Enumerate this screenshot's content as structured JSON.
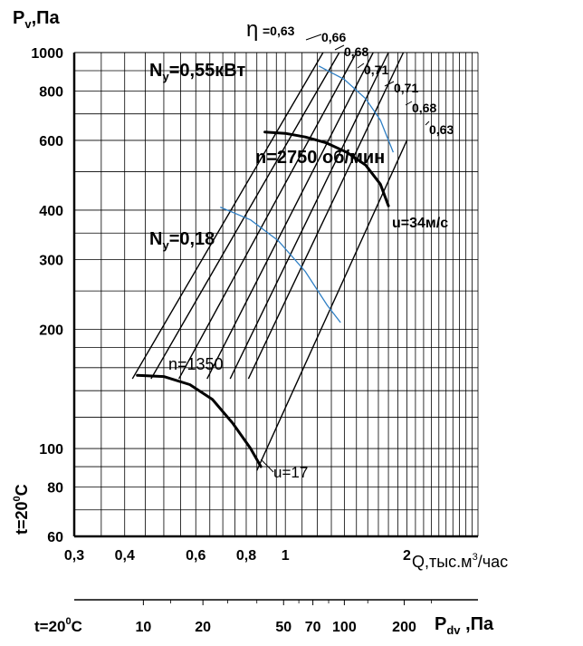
{
  "chart_data": {
    "type": "line",
    "xscale": "log",
    "yscale": "log",
    "xlim": [
      0.3,
      3.0
    ],
    "ylim": [
      60,
      1000
    ],
    "grid": true,
    "y_title_main": "P",
    "y_title_sub": "v",
    "y_title_unit": ",Па",
    "x_title_main": "Q,тыс.м",
    "x_title_sup": "3",
    "x_title_unit": "/час",
    "x_ticks": [
      {
        "v": 0.3,
        "label": "0,3"
      },
      {
        "v": 0.4,
        "label": "0,4"
      },
      {
        "v": 0.6,
        "label": "0,6"
      },
      {
        "v": 0.8,
        "label": "0,8"
      },
      {
        "v": 1.0,
        "label": "1"
      },
      {
        "v": 2.0,
        "label": "2"
      }
    ],
    "y_ticks": [
      {
        "v": 60,
        "label": "60"
      },
      {
        "v": 80,
        "label": "80"
      },
      {
        "v": 100,
        "label": "100"
      },
      {
        "v": 200,
        "label": "200"
      },
      {
        "v": 300,
        "label": "300"
      },
      {
        "v": 400,
        "label": "400"
      },
      {
        "v": 600,
        "label": "600"
      },
      {
        "v": 800,
        "label": "800"
      },
      {
        "v": 1000,
        "label": "1000"
      }
    ],
    "temperature_label": "t=20",
    "temperature_sup": "0",
    "temperature_unit": "С",
    "dyn_axis": {
      "prefix": "t=20",
      "prefix_sup": "0",
      "prefix_unit": "С",
      "ticks": [
        {
          "label": "10",
          "at_q": 0.445
        },
        {
          "label": "20",
          "at_q": 0.625
        },
        {
          "label": "50",
          "at_q": 0.99
        },
        {
          "label": "70",
          "at_q": 1.17
        },
        {
          "label": "100",
          "at_q": 1.4
        },
        {
          "label": "200",
          "at_q": 1.97
        }
      ],
      "title_main": "P",
      "title_sub": "dv",
      "title_unit": " ,Па"
    },
    "efficiency": {
      "symbol": "η",
      "labels": [
        "=0,63",
        "0,66",
        "0,68",
        "0,71",
        "0,71",
        "0,68",
        "0,63"
      ],
      "lines": [
        {
          "q1": 0.418,
          "p1": 150,
          "q2": 1.24,
          "p2": 1000
        },
        {
          "q1": 0.465,
          "p1": 150,
          "q2": 1.36,
          "p2": 1000
        },
        {
          "q1": 0.545,
          "p1": 150,
          "q2": 1.5,
          "p2": 1000
        },
        {
          "q1": 0.64,
          "p1": 150,
          "q2": 1.65,
          "p2": 1000
        },
        {
          "q1": 0.73,
          "p1": 150,
          "q2": 1.8,
          "p2": 1000
        },
        {
          "q1": 0.81,
          "p1": 150,
          "q2": 1.96,
          "p2": 1000
        },
        {
          "q1": 0.85,
          "p1": 88,
          "q2": 2.0,
          "p2": 600
        }
      ]
    },
    "speed_curves": [
      {
        "label": "n=1350",
        "points": [
          [
            0.43,
            153
          ],
          [
            0.5,
            152
          ],
          [
            0.58,
            145
          ],
          [
            0.66,
            133
          ],
          [
            0.74,
            116
          ],
          [
            0.82,
            100
          ],
          [
            0.87,
            90
          ]
        ]
      },
      {
        "label": "n=2750 об/мин",
        "points": [
          [
            0.89,
            630
          ],
          [
            1.0,
            625
          ],
          [
            1.12,
            612
          ],
          [
            1.26,
            592
          ],
          [
            1.42,
            560
          ],
          [
            1.58,
            520
          ],
          [
            1.72,
            465
          ],
          [
            1.8,
            410
          ]
        ]
      }
    ],
    "power_curves": [
      {
        "label_main": "N",
        "label_sub": "y",
        "label_value": "=0,55кВт",
        "points": [
          [
            1.21,
            925
          ],
          [
            1.4,
            855
          ],
          [
            1.58,
            765
          ],
          [
            1.72,
            675
          ],
          [
            1.85,
            560
          ]
        ]
      },
      {
        "label_main": "N",
        "label_sub": "y",
        "label_value": "=0,18",
        "points": [
          [
            0.69,
            407
          ],
          [
            0.82,
            378
          ],
          [
            0.96,
            335
          ],
          [
            1.12,
            280
          ],
          [
            1.27,
            230
          ],
          [
            1.37,
            208
          ]
        ]
      }
    ],
    "velocity_labels": [
      "u=34м/с",
      "u=17"
    ]
  }
}
